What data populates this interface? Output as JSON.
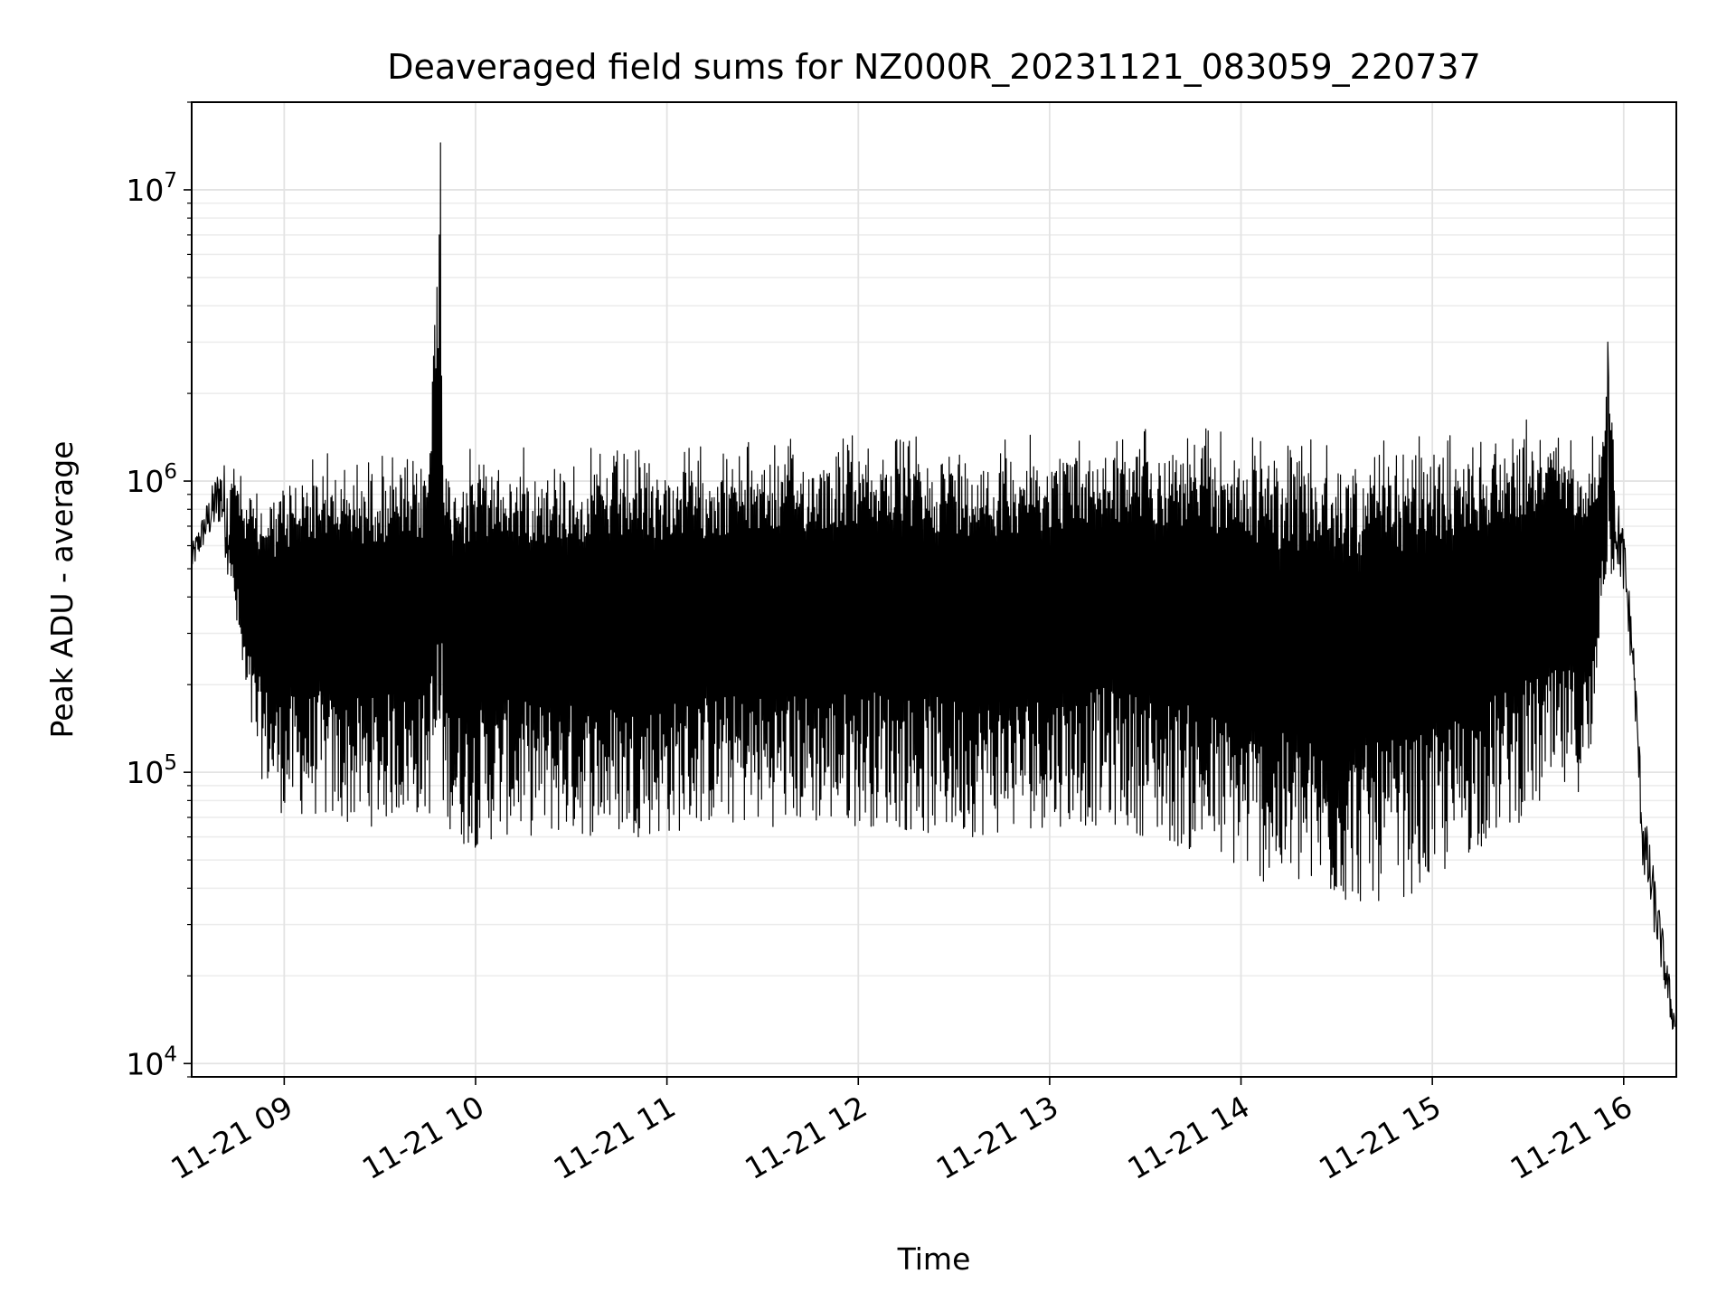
{
  "chart_data": {
    "type": "line",
    "title": "Deaveraged field sums for NZ000R_20231121_083059_220737",
    "xlabel": "Time",
    "ylabel": "Peak ADU - average",
    "y_scale": "log",
    "ylim": [
      9000,
      20000000
    ],
    "xlim": [
      "2023-11-21 08:30:59",
      "2023-11-21 16:16:30"
    ],
    "grid": true,
    "x_ticks": [
      {
        "t": "2023-11-21 09:00",
        "label": "11-21 09"
      },
      {
        "t": "2023-11-21 10:00",
        "label": "11-21 10"
      },
      {
        "t": "2023-11-21 11:00",
        "label": "11-21 11"
      },
      {
        "t": "2023-11-21 12:00",
        "label": "11-21 12"
      },
      {
        "t": "2023-11-21 13:00",
        "label": "11-21 13"
      },
      {
        "t": "2023-11-21 14:00",
        "label": "11-21 14"
      },
      {
        "t": "2023-11-21 15:00",
        "label": "11-21 15"
      },
      {
        "t": "2023-11-21 16:00",
        "label": "11-21 16"
      }
    ],
    "y_ticks": [
      {
        "v": 10000,
        "base": "10",
        "exp": "4"
      },
      {
        "v": 100000,
        "base": "10",
        "exp": "5"
      },
      {
        "v": 1000000,
        "base": "10",
        "exp": "6"
      },
      {
        "v": 10000000,
        "base": "10",
        "exp": "7"
      }
    ],
    "series": [
      {
        "color": "#000000",
        "x": [
          "2023-11-21 08:31",
          "2023-11-21 08:35",
          "2023-11-21 08:40",
          "2023-11-21 08:45",
          "2023-11-21 08:48",
          "2023-11-21 08:52",
          "2023-11-21 08:56",
          "2023-11-21 09:00",
          "2023-11-21 09:05",
          "2023-11-21 09:10",
          "2023-11-21 09:15",
          "2023-11-21 09:20",
          "2023-11-21 09:25",
          "2023-11-21 09:30",
          "2023-11-21 09:35",
          "2023-11-21 09:40",
          "2023-11-21 09:45",
          "2023-11-21 09:49",
          "2023-11-21 09:50",
          "2023-11-21 09:55",
          "2023-11-21 10:00",
          "2023-11-21 10:10",
          "2023-11-21 10:20",
          "2023-11-21 10:30",
          "2023-11-21 10:40",
          "2023-11-21 10:50",
          "2023-11-21 11:00",
          "2023-11-21 11:10",
          "2023-11-21 11:20",
          "2023-11-21 11:30",
          "2023-11-21 11:40",
          "2023-11-21 11:50",
          "2023-11-21 12:00",
          "2023-11-21 12:10",
          "2023-11-21 12:20",
          "2023-11-21 12:30",
          "2023-11-21 12:40",
          "2023-11-21 12:50",
          "2023-11-21 13:00",
          "2023-11-21 13:10",
          "2023-11-21 13:20",
          "2023-11-21 13:30",
          "2023-11-21 13:40",
          "2023-11-21 13:50",
          "2023-11-21 14:00",
          "2023-11-21 14:10",
          "2023-11-21 14:20",
          "2023-11-21 14:30",
          "2023-11-21 14:40",
          "2023-11-21 14:50",
          "2023-11-21 15:00",
          "2023-11-21 15:10",
          "2023-11-21 15:20",
          "2023-11-21 15:30",
          "2023-11-21 15:40",
          "2023-11-21 15:50",
          "2023-11-21 15:53",
          "2023-11-21 15:55",
          "2023-11-21 15:58",
          "2023-11-21 16:00",
          "2023-11-21 16:03",
          "2023-11-21 16:06",
          "2023-11-21 16:09",
          "2023-11-21 16:12",
          "2023-11-21 16:15",
          "2023-11-21 16:16"
        ],
        "upper": [
          600000,
          800000,
          1200000,
          1100000,
          1000000,
          900000,
          1000000,
          1100000,
          1200000,
          1300000,
          1300000,
          1200000,
          1250000,
          1300000,
          1250000,
          1200000,
          1250000,
          14500000,
          1300000,
          1300000,
          1300000,
          1350000,
          1300000,
          1300000,
          1300000,
          1300000,
          1350000,
          1350000,
          1350000,
          1400000,
          1400000,
          1450000,
          1500000,
          1500000,
          1450000,
          1450000,
          1400000,
          1450000,
          1450000,
          1500000,
          1550000,
          1600000,
          1550000,
          1550000,
          1500000,
          1400000,
          1400000,
          1350000,
          1350000,
          1400000,
          1450000,
          1500000,
          1600000,
          1650000,
          1600000,
          1500000,
          1300000,
          3000000,
          900000,
          700000,
          300000,
          80000,
          50000,
          30000,
          18000,
          15000
        ],
        "lower": [
          480000,
          600000,
          700000,
          300000,
          150000,
          100000,
          80000,
          70000,
          70000,
          70000,
          65000,
          65000,
          65000,
          65000,
          70000,
          70000,
          70000,
          70000,
          70000,
          55000,
          55000,
          60000,
          60000,
          60000,
          60000,
          60000,
          60000,
          65000,
          65000,
          65000,
          65000,
          65000,
          65000,
          65000,
          60000,
          60000,
          60000,
          62000,
          65000,
          65000,
          65000,
          60000,
          55000,
          50000,
          45000,
          40000,
          38000,
          35000,
          35000,
          37000,
          40000,
          50000,
          60000,
          70000,
          80000,
          90000,
          400000,
          450000,
          500000,
          400000,
          200000,
          45000,
          30000,
          20000,
          13000,
          12500
        ]
      }
    ]
  }
}
